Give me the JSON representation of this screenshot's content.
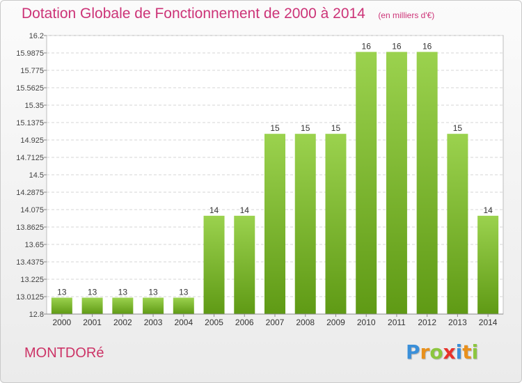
{
  "title": "Dotation Globale de Fonctionnement de 2000 à 2014",
  "unit_label": "(en milliers d'€)",
  "commune": "MONTDORé",
  "brand": {
    "name": "Proxiti",
    "letters": [
      "P",
      "r",
      "o",
      "x",
      "i",
      "t",
      "i"
    ],
    "letter_colors": [
      "#3a8fd9",
      "#e8901c",
      "#8cc63f",
      "#e8322b",
      "#3a8fd9",
      "#e8901c",
      "#8cc63f"
    ]
  },
  "colors": {
    "title": "#cc3377",
    "commune": "#cc3366",
    "bar_top": "#9bd24e",
    "bar_bottom": "#5f9a15",
    "grid": "#d4d4d4"
  },
  "chart_data": {
    "type": "bar",
    "categories": [
      "2000",
      "2001",
      "2002",
      "2003",
      "2004",
      "2005",
      "2006",
      "2007",
      "2008",
      "2009",
      "2010",
      "2011",
      "2012",
      "2013",
      "2014"
    ],
    "values": [
      13,
      13,
      13,
      13,
      13,
      14,
      14,
      15,
      15,
      15,
      16,
      16,
      16,
      15,
      14
    ],
    "value_labels": [
      "13",
      "13",
      "13",
      "13",
      "13",
      "14",
      "14",
      "15",
      "15",
      "15",
      "16",
      "16",
      "16",
      "15",
      "14"
    ],
    "ylim": [
      12.8,
      16.2
    ],
    "yticks": [
      12.8,
      13.0125,
      13.225,
      13.4375,
      13.65,
      13.8625,
      14.075,
      14.2875,
      14.5,
      14.7125,
      14.925,
      15.1375,
      15.35,
      15.5625,
      15.775,
      15.9875,
      16.2
    ],
    "ytick_labels": [
      "12.8",
      "13.0125",
      "13.225",
      "13.4375",
      "13.65",
      "13.8625",
      "14.075",
      "14.2875",
      "14.5",
      "14.7125",
      "14.925",
      "15.1375",
      "15.35",
      "15.5625",
      "15.775",
      "15.9875",
      "16.2"
    ],
    "grid": true,
    "legend": "none"
  }
}
